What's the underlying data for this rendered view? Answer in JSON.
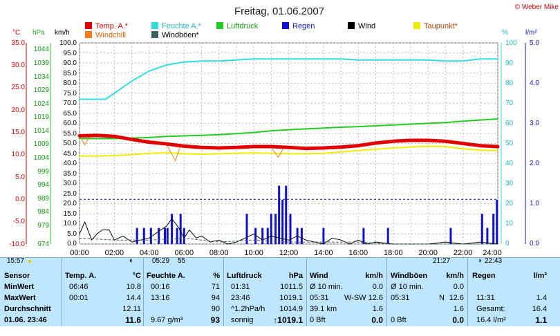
{
  "header": {
    "title": "Freitag, 01.06.2007",
    "copyright": "© Weber Mike"
  },
  "legend": [
    {
      "label": "Temp. A.*",
      "color": "#e00000"
    },
    {
      "label": "Feuchte A.*",
      "color": "#33dddd"
    },
    {
      "label": "Luftdruck",
      "color": "#22cc22"
    },
    {
      "label": "Regen",
      "color": "#1010d0"
    },
    {
      "label": "Wind",
      "color": "#000000"
    },
    {
      "label": "Taupunkt*",
      "color": "#eeee00"
    },
    {
      "label": "Windchill",
      "color": "#ff7a10"
    },
    {
      "label": "Windböen*",
      "color": "#3d6060"
    }
  ],
  "axis_titles": {
    "temp": "°C",
    "pressure": "hPa",
    "wind": "km/h",
    "humidity": "%",
    "rain": "l/m²"
  },
  "axes": {
    "temp_ticks": [
      "35.0",
      "30.0",
      "25.0",
      "20.0",
      "15.0",
      "10.0",
      "5.0",
      "0.0",
      "-5.0",
      "-10.0"
    ],
    "pressure_ticks": [
      "1044",
      "1039",
      "1034",
      "1029",
      "1024",
      "1019",
      "1014",
      "1009",
      "1004",
      "999",
      "994",
      "989",
      "984",
      "979",
      "974"
    ],
    "wind_ticks": [
      "100.0",
      "95.0",
      "90.0",
      "85.0",
      "80.0",
      "75.0",
      "70.0",
      "65.0",
      "60.0",
      "55.0",
      "50.0",
      "45.0",
      "40.0",
      "35.0",
      "30.0",
      "25.0",
      "20.0",
      "15.0",
      "10.0",
      "5.0",
      "0.0"
    ],
    "humidity_ticks": [
      "100",
      "90",
      "80",
      "70",
      "60",
      "50",
      "40",
      "30",
      "20",
      "10",
      "0"
    ],
    "rain_ticks": [
      "5.0",
      "4.0",
      "3.0",
      "2.0",
      "1.0",
      "0.0"
    ],
    "time_ticks": [
      "00:00",
      "02:00",
      "04:00",
      "06:00",
      "08:00",
      "10:00",
      "12:00",
      "14:00",
      "16:00",
      "18:00",
      "20:00",
      "22:00",
      "24:00"
    ]
  },
  "time_markers": {
    "first": "15:57",
    "sunrise": "05:29",
    "sunrise_dur": "55",
    "sunset": "21:27",
    "moon": "22:43"
  },
  "stats": {
    "sensor": {
      "title": "Sensor",
      "rows": [
        "MinWert",
        "MaxWert",
        "Durchschnitt",
        "01.06. 23:46"
      ]
    },
    "temp": {
      "title": "Temp. A.",
      "unit": "°C",
      "rows": [
        [
          "06:46",
          "10.8"
        ],
        [
          "00:01",
          "14.4"
        ],
        [
          "",
          "12.11"
        ],
        [
          "",
          "11.6"
        ]
      ]
    },
    "humidity": {
      "title": "Feuchte A.",
      "unit": "%",
      "rows": [
        [
          "00:16",
          "71"
        ],
        [
          "13:16",
          "94"
        ],
        [
          "",
          "90"
        ],
        [
          "9.67 g/m³",
          "93"
        ]
      ]
    },
    "pressure": {
      "title": "Luftdruck",
      "unit": "hPa",
      "rows": [
        [
          "01:31",
          "1011.5"
        ],
        [
          "23:46",
          "1019.1"
        ],
        [
          "^1.2hPa/h",
          "1014.9"
        ],
        [
          "sonnig",
          "↑1019.1"
        ]
      ]
    },
    "wind": {
      "title": "Wind",
      "unit": "km/h",
      "rows": [
        [
          "Ø 10 min.",
          "",
          "0.0"
        ],
        [
          "05:31",
          "W-SW",
          "12.6"
        ],
        [
          "39.1 km",
          "",
          "1.6"
        ],
        [
          "0 Bft",
          "",
          "0.0"
        ]
      ]
    },
    "gusts": {
      "title": "Windböen",
      "unit": "km/h",
      "rows": [
        [
          "Ø 10 min.",
          "",
          "0.0"
        ],
        [
          "05:31",
          "N",
          "12.6"
        ],
        [
          "",
          "",
          "1.6"
        ],
        [
          "0 Bft",
          "",
          "0.0"
        ]
      ]
    },
    "rain": {
      "title": "Regen",
      "unit": "l/m²",
      "rows": [
        [
          "",
          ""
        ],
        [
          "11:31",
          "1.4"
        ],
        [
          "Gesamt:",
          "16.4"
        ],
        [
          "16.4 l/m²",
          "1.1"
        ]
      ]
    }
  },
  "chart_data": {
    "type": "line",
    "title": "Freitag, 01.06.2007",
    "x_unit": "hours",
    "xlim": [
      0,
      24
    ],
    "grid": true,
    "axes": {
      "temp": {
        "label": "°C",
        "range": [
          -10,
          35
        ]
      },
      "pressure": {
        "label": "hPa",
        "range": [
          974,
          1046.5
        ]
      },
      "wind": {
        "label": "km/h",
        "range": [
          0,
          100
        ]
      },
      "humidity": {
        "label": "%",
        "range": [
          0,
          100
        ]
      },
      "rain": {
        "label": "l/m²",
        "range": [
          0,
          5
        ]
      }
    },
    "reference_line": {
      "axis": "temp",
      "value": 0
    },
    "series": [
      {
        "name": "Feuchte A.*",
        "axis": "humidity",
        "color": "#33dddd",
        "width": 2,
        "points": [
          [
            0,
            72
          ],
          [
            1,
            72
          ],
          [
            1.5,
            72
          ],
          [
            2,
            75
          ],
          [
            3,
            81
          ],
          [
            4,
            86
          ],
          [
            5,
            89
          ],
          [
            6,
            90.5
          ],
          [
            7,
            91
          ],
          [
            8,
            91
          ],
          [
            9,
            91.5
          ],
          [
            10,
            92
          ],
          [
            11,
            92
          ],
          [
            12,
            92
          ],
          [
            13,
            92
          ],
          [
            14,
            92
          ],
          [
            15,
            92
          ],
          [
            16,
            91.5
          ],
          [
            17,
            91.5
          ],
          [
            18,
            91.5
          ],
          [
            19,
            91.5
          ],
          [
            20,
            91.5
          ],
          [
            21,
            91
          ],
          [
            22,
            91
          ],
          [
            23,
            92
          ],
          [
            24,
            92
          ]
        ]
      },
      {
        "name": "Luftdruck",
        "axis": "pressure",
        "color": "#22cc22",
        "width": 2,
        "points": [
          [
            0,
            1012
          ],
          [
            1,
            1012
          ],
          [
            2,
            1012
          ],
          [
            3,
            1012.2
          ],
          [
            4,
            1012.4
          ],
          [
            5,
            1012.8
          ],
          [
            6,
            1013
          ],
          [
            7,
            1013.2
          ],
          [
            8,
            1013.4
          ],
          [
            9,
            1013.8
          ],
          [
            10,
            1014.2
          ],
          [
            11,
            1014.8
          ],
          [
            12,
            1015.2
          ],
          [
            13,
            1015.5
          ],
          [
            14,
            1015.8
          ],
          [
            15,
            1016.1
          ],
          [
            16,
            1016.3
          ],
          [
            17,
            1016.6
          ],
          [
            18,
            1016.9
          ],
          [
            19,
            1017.2
          ],
          [
            20,
            1017.5
          ],
          [
            21,
            1017.8
          ],
          [
            22,
            1018.3
          ],
          [
            23,
            1018.7
          ],
          [
            24,
            1019.1
          ]
        ]
      },
      {
        "name": "Taupunkt*",
        "axis": "temp",
        "color": "#eeee00",
        "width": 2,
        "points": [
          [
            0,
            9.7
          ],
          [
            1,
            9.7
          ],
          [
            2,
            9.8
          ],
          [
            3,
            10.0
          ],
          [
            4,
            10.3
          ],
          [
            5,
            10.4
          ],
          [
            6,
            10.2
          ],
          [
            7,
            10.1
          ],
          [
            8,
            10.2
          ],
          [
            9,
            10.3
          ],
          [
            10,
            10.4
          ],
          [
            11,
            10.3
          ],
          [
            12,
            10.2
          ],
          [
            13,
            10.2
          ],
          [
            14,
            10.3
          ],
          [
            15,
            10.6
          ],
          [
            16,
            10.9
          ],
          [
            17,
            11.2
          ],
          [
            18,
            11.5
          ],
          [
            19,
            11.7
          ],
          [
            20,
            11.9
          ],
          [
            21,
            11.8
          ],
          [
            22,
            11.3
          ],
          [
            23,
            11.0
          ],
          [
            24,
            10.9
          ]
        ]
      },
      {
        "name": "Windchill",
        "axis": "temp",
        "color": "#ff7a10",
        "width": 1,
        "points": [
          [
            0,
            14.2
          ],
          [
            0.3,
            12.2
          ],
          [
            0.6,
            14.2
          ],
          [
            2,
            14.0
          ],
          [
            3,
            13.2
          ],
          [
            4,
            12.6
          ],
          [
            5,
            12.3
          ],
          [
            5.5,
            8.6
          ],
          [
            5.8,
            12.0
          ],
          [
            7,
            11.6
          ],
          [
            8,
            11.5
          ],
          [
            9,
            11.7
          ],
          [
            10,
            11.8
          ],
          [
            11,
            11.6
          ],
          [
            11.4,
            9.4
          ],
          [
            11.7,
            11.4
          ],
          [
            12,
            11.4
          ],
          [
            13,
            11.3
          ],
          [
            14,
            11.4
          ],
          [
            15,
            11.6
          ],
          [
            16,
            11.9
          ],
          [
            17,
            12.4
          ],
          [
            18,
            12.9
          ],
          [
            19,
            13.0
          ],
          [
            20,
            13.0
          ],
          [
            21,
            12.8
          ],
          [
            22,
            12.2
          ],
          [
            23,
            11.8
          ],
          [
            24,
            11.5
          ]
        ]
      },
      {
        "name": "Temp. A.*",
        "axis": "temp",
        "color": "#e00000",
        "width": 5,
        "points": [
          [
            0,
            14.2
          ],
          [
            1,
            14.3
          ],
          [
            2,
            14.1
          ],
          [
            3,
            13.4
          ],
          [
            4,
            12.8
          ],
          [
            5,
            12.4
          ],
          [
            6,
            11.9
          ],
          [
            7,
            11.6
          ],
          [
            8,
            11.5
          ],
          [
            9,
            11.6
          ],
          [
            10,
            11.8
          ],
          [
            11,
            11.8
          ],
          [
            12,
            11.6
          ],
          [
            13,
            11.4
          ],
          [
            14,
            11.5
          ],
          [
            15,
            11.7
          ],
          [
            16,
            12.0
          ],
          [
            17,
            12.6
          ],
          [
            18,
            13.0
          ],
          [
            19,
            13.2
          ],
          [
            20,
            13.2
          ],
          [
            21,
            13.0
          ],
          [
            22,
            12.5
          ],
          [
            23,
            12.0
          ],
          [
            24,
            11.8
          ]
        ]
      },
      {
        "name": "Wind",
        "axis": "wind",
        "color": "#000000",
        "width": 1,
        "points": [
          [
            0,
            5
          ],
          [
            0.3,
            11
          ],
          [
            0.7,
            2
          ],
          [
            1,
            5
          ],
          [
            1.3,
            7
          ],
          [
            1.7,
            7
          ],
          [
            2,
            2
          ],
          [
            2.5,
            4
          ],
          [
            3,
            1
          ],
          [
            3.5,
            2
          ],
          [
            4,
            3
          ],
          [
            4.5,
            6
          ],
          [
            5,
            9
          ],
          [
            5.3,
            12.6
          ],
          [
            5.7,
            8
          ],
          [
            6,
            3
          ],
          [
            6.3,
            7
          ],
          [
            6.7,
            3
          ],
          [
            7,
            4
          ],
          [
            7.5,
            1
          ],
          [
            8,
            2
          ],
          [
            8.5,
            0
          ],
          [
            9,
            1
          ],
          [
            9.5,
            3
          ],
          [
            10,
            5
          ],
          [
            10.5,
            2
          ],
          [
            11,
            4
          ],
          [
            11.5,
            3
          ],
          [
            12,
            2
          ],
          [
            12.5,
            4
          ],
          [
            13,
            2
          ],
          [
            13.5,
            1
          ],
          [
            14,
            0
          ],
          [
            14.5,
            3
          ],
          [
            15,
            2
          ],
          [
            15.5,
            0
          ],
          [
            16,
            2
          ],
          [
            16.5,
            0
          ],
          [
            17,
            1
          ],
          [
            18,
            0
          ],
          [
            19,
            0
          ],
          [
            20,
            0
          ],
          [
            21,
            1
          ],
          [
            22,
            0
          ],
          [
            23,
            1
          ],
          [
            24,
            0
          ]
        ]
      },
      {
        "name": "Windböen*",
        "axis": "wind",
        "color": "#3d6060",
        "width": 1,
        "dashed": true,
        "points": [
          [
            0,
            3
          ],
          [
            2,
            2
          ],
          [
            4,
            2
          ],
          [
            6,
            3
          ],
          [
            8,
            1
          ],
          [
            10,
            2
          ],
          [
            12,
            1
          ],
          [
            14,
            1
          ],
          [
            16,
            1
          ],
          [
            18,
            0
          ],
          [
            20,
            0
          ],
          [
            22,
            0
          ],
          [
            24,
            0
          ]
        ]
      }
    ],
    "rain_bars": {
      "name": "Regen",
      "axis": "rain",
      "color": "#1010d0",
      "bars": [
        [
          3.3,
          0.4
        ],
        [
          3.7,
          0.4
        ],
        [
          4.1,
          0.4
        ],
        [
          4.55,
          0.4
        ],
        [
          4.9,
          0.4
        ],
        [
          5.05,
          0.4
        ],
        [
          5.3,
          0.75
        ],
        [
          5.6,
          0.4
        ],
        [
          5.8,
          0.75
        ],
        [
          6.0,
          0.4
        ],
        [
          9.6,
          0.75
        ],
        [
          10.1,
          0.4
        ],
        [
          10.5,
          0.4
        ],
        [
          10.8,
          0.4
        ],
        [
          11.0,
          0.75
        ],
        [
          11.25,
          0.75
        ],
        [
          11.45,
          1.45
        ],
        [
          11.65,
          1.1
        ],
        [
          11.85,
          1.45
        ],
        [
          12.1,
          0.75
        ],
        [
          12.5,
          0.4
        ],
        [
          12.75,
          0.4
        ],
        [
          14.0,
          0.4
        ],
        [
          16.3,
          0.4
        ],
        [
          17.7,
          0.4
        ],
        [
          21.3,
          0.4
        ],
        [
          23.1,
          0.75
        ],
        [
          23.4,
          0.4
        ],
        [
          23.75,
          0.75
        ],
        [
          23.95,
          1.1
        ]
      ]
    }
  }
}
